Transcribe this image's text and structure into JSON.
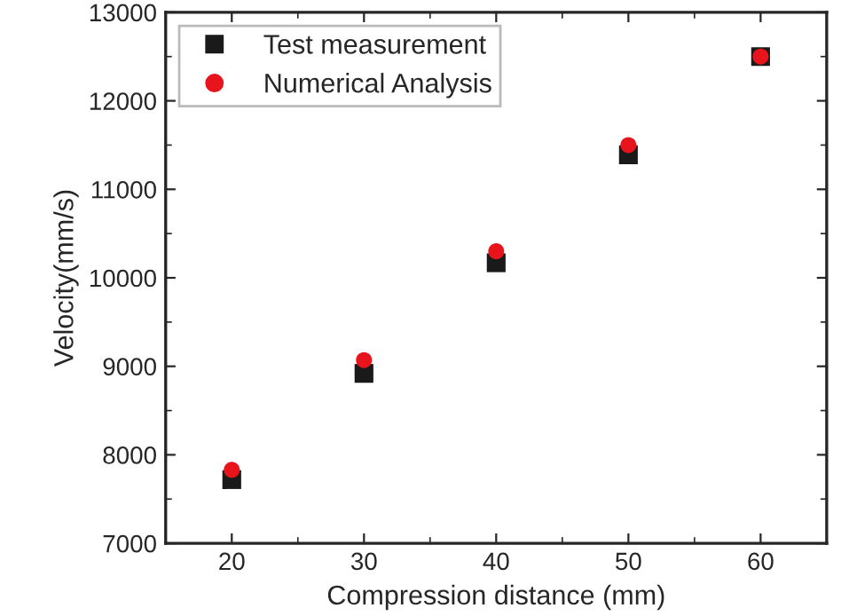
{
  "chart_data": {
    "type": "scatter",
    "xlabel": "Compression distance (mm)",
    "ylabel": "Velocity(mm/s)",
    "x": [
      20,
      30,
      40,
      50,
      60
    ],
    "series": [
      {
        "name": "Test measurement",
        "color": "#1a1a1a",
        "marker": "square",
        "values": [
          7720,
          8920,
          10170,
          11390,
          12500
        ]
      },
      {
        "name": "Numerical Analysis",
        "color": "#e8141c",
        "marker": "circle",
        "values": [
          7830,
          9070,
          10300,
          11500,
          12500
        ]
      }
    ],
    "xlim": [
      15,
      65
    ],
    "xticks": [
      20,
      30,
      40,
      50,
      60
    ],
    "ylim": [
      7000,
      13000
    ],
    "yticks": [
      7000,
      8000,
      9000,
      10000,
      11000,
      12000,
      13000
    ],
    "grid": false,
    "legend": "top left"
  }
}
